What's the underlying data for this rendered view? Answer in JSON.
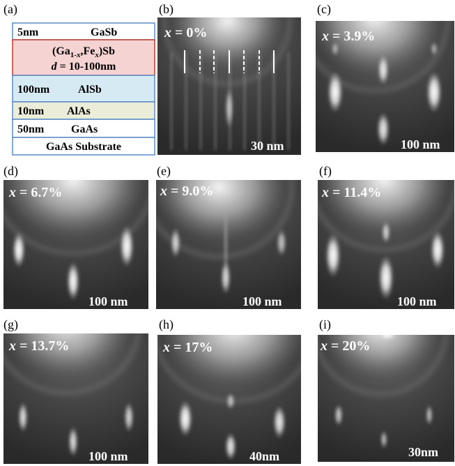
{
  "figure": {
    "panel_a": {
      "label": "(a)",
      "layers": [
        {
          "thickness": "5nm",
          "material": "GaSb"
        },
        {
          "formula_parts": [
            "(Ga",
            "1-",
            "x",
            ",Fe",
            "x",
            ")Sb"
          ],
          "thickness_parts": [
            "d",
            " = 10-100nm"
          ]
        },
        {
          "thickness": "100nm",
          "material": "AlSb"
        },
        {
          "thickness": "10nm",
          "material": "AlAs"
        },
        {
          "thickness": "50nm",
          "material": "GaAs"
        },
        {
          "material": "GaAs Substrate"
        }
      ]
    },
    "rheed_panels": [
      {
        "label": "(b)",
        "variable": "x",
        "composition": " = 0%",
        "scale": "30 nm"
      },
      {
        "label": "(c)",
        "variable": "x",
        "composition": " = 3.9%",
        "scale": "100 nm"
      },
      {
        "label": "(d)",
        "variable": "x",
        "composition": " = 6.7%",
        "scale": "100 nm"
      },
      {
        "label": "(e)",
        "variable": "x",
        "composition": " = 9.0%",
        "scale": "100 nm"
      },
      {
        "label": "(f)",
        "variable": "x",
        "composition": " = 11.4%",
        "scale": "100 nm"
      },
      {
        "label": "(g)",
        "variable": "x",
        "composition": " = 13.7%",
        "scale": "100 nm"
      },
      {
        "label": "(h)",
        "variable": "x",
        "composition": " = 17%",
        "scale": "40nm"
      },
      {
        "label": "(i)",
        "variable": "x",
        "composition": " = 20%",
        "scale": "30nm"
      }
    ]
  }
}
